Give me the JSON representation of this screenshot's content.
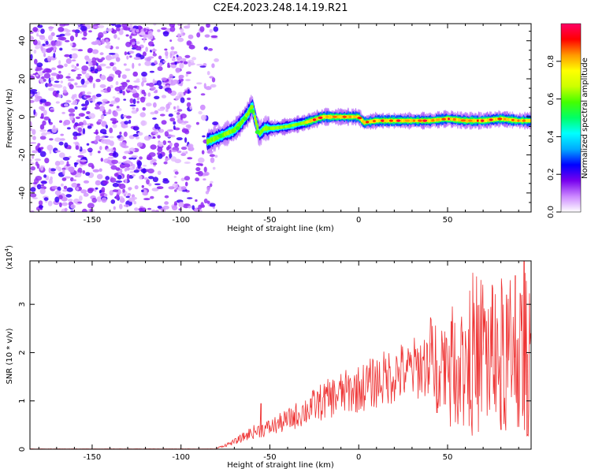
{
  "title": "C2E4.2023.248.14.19.R21",
  "chart_data": [
    {
      "type": "heatmap",
      "xlabel": "Height of straight line (km)",
      "ylabel": "Frequency (Hz)",
      "xlim": [
        -185,
        97
      ],
      "ylim": [
        -50,
        49
      ],
      "xticks": [
        -150,
        -100,
        -50,
        0,
        50
      ],
      "yticks": [
        -40,
        -20,
        0,
        20,
        40
      ],
      "colorbar": {
        "label": "Normalized spectral amplitude",
        "range": [
          0,
          1
        ],
        "ticks": [
          "0.0",
          "0.2",
          "0.4",
          "0.6",
          "0.8"
        ],
        "colors": [
          "#ffffff",
          "#cc88ff",
          "#7700ee",
          "#0000ff",
          "#00aaff",
          "#00ffff",
          "#00ff66",
          "#44ff00",
          "#ccff00",
          "#ffff00",
          "#ff9900",
          "#ff0000",
          "#ff0066"
        ]
      },
      "noise_region_x": [
        -185,
        -80
      ],
      "ridge": [
        {
          "x": -85,
          "y": -13
        },
        {
          "x": -80,
          "y": -11
        },
        {
          "x": -75,
          "y": -9
        },
        {
          "x": -70,
          "y": -7
        },
        {
          "x": -66,
          "y": -3
        },
        {
          "x": -62,
          "y": 2
        },
        {
          "x": -60,
          "y": 6
        },
        {
          "x": -58,
          "y": -2
        },
        {
          "x": -56,
          "y": -9
        },
        {
          "x": -53,
          "y": -6
        },
        {
          "x": -48,
          "y": -6
        },
        {
          "x": -40,
          "y": -5
        },
        {
          "x": -30,
          "y": -3
        },
        {
          "x": -20,
          "y": 0
        },
        {
          "x": -10,
          "y": 0
        },
        {
          "x": 0,
          "y": 0
        },
        {
          "x": 3,
          "y": -3
        },
        {
          "x": 10,
          "y": -2
        },
        {
          "x": 25,
          "y": -2
        },
        {
          "x": 40,
          "y": -2
        },
        {
          "x": 50,
          "y": -1
        },
        {
          "x": 60,
          "y": -2
        },
        {
          "x": 70,
          "y": -2
        },
        {
          "x": 80,
          "y": -1
        },
        {
          "x": 90,
          "y": -2
        },
        {
          "x": 97,
          "y": -2
        }
      ]
    },
    {
      "type": "line",
      "xlabel": "Height of straight line (km)",
      "ylabel": "SNR (10 * v/v)",
      "scale_label": "(x10",
      "scale_exponent": "4",
      "scale_close": ")",
      "xlim": [
        -185,
        97
      ],
      "ylim": [
        0,
        3.9
      ],
      "xticks": [
        -150,
        -100,
        -50,
        0,
        50
      ],
      "yticks": [
        0,
        1,
        2,
        3
      ],
      "color": "#ee3333",
      "envelope": [
        {
          "x": -185,
          "y": 0.0
        },
        {
          "x": -80,
          "y": 0.02
        },
        {
          "x": -70,
          "y": 0.15
        },
        {
          "x": -60,
          "y": 0.35
        },
        {
          "x": -50,
          "y": 0.45
        },
        {
          "x": -40,
          "y": 0.6
        },
        {
          "x": -30,
          "y": 0.8
        },
        {
          "x": -20,
          "y": 1.0
        },
        {
          "x": -10,
          "y": 1.15
        },
        {
          "x": 0,
          "y": 1.25
        },
        {
          "x": 10,
          "y": 1.4
        },
        {
          "x": 20,
          "y": 1.55
        },
        {
          "x": 30,
          "y": 1.65
        },
        {
          "x": 40,
          "y": 1.8
        },
        {
          "x": 50,
          "y": 1.9
        },
        {
          "x": 60,
          "y": 1.95
        },
        {
          "x": 70,
          "y": 1.95
        },
        {
          "x": 80,
          "y": 1.9
        },
        {
          "x": 90,
          "y": 1.9
        },
        {
          "x": 97,
          "y": 2.0
        }
      ],
      "peaks": [
        {
          "x": -55,
          "y": 0.95
        },
        {
          "x": -27,
          "y": 1.05
        },
        {
          "x": 27,
          "y": 1.85
        },
        {
          "x": 40,
          "y": 2.2
        },
        {
          "x": 44,
          "y": 0.75
        },
        {
          "x": 52,
          "y": 2.65
        },
        {
          "x": 56,
          "y": 0.95
        },
        {
          "x": 70,
          "y": 2.2
        },
        {
          "x": 75,
          "y": 3.4
        },
        {
          "x": 80,
          "y": 0.4
        },
        {
          "x": 83,
          "y": 3.2
        },
        {
          "x": 88,
          "y": 3.6
        },
        {
          "x": 93,
          "y": 3.9
        },
        {
          "x": 95,
          "y": 0.3
        }
      ]
    }
  ]
}
